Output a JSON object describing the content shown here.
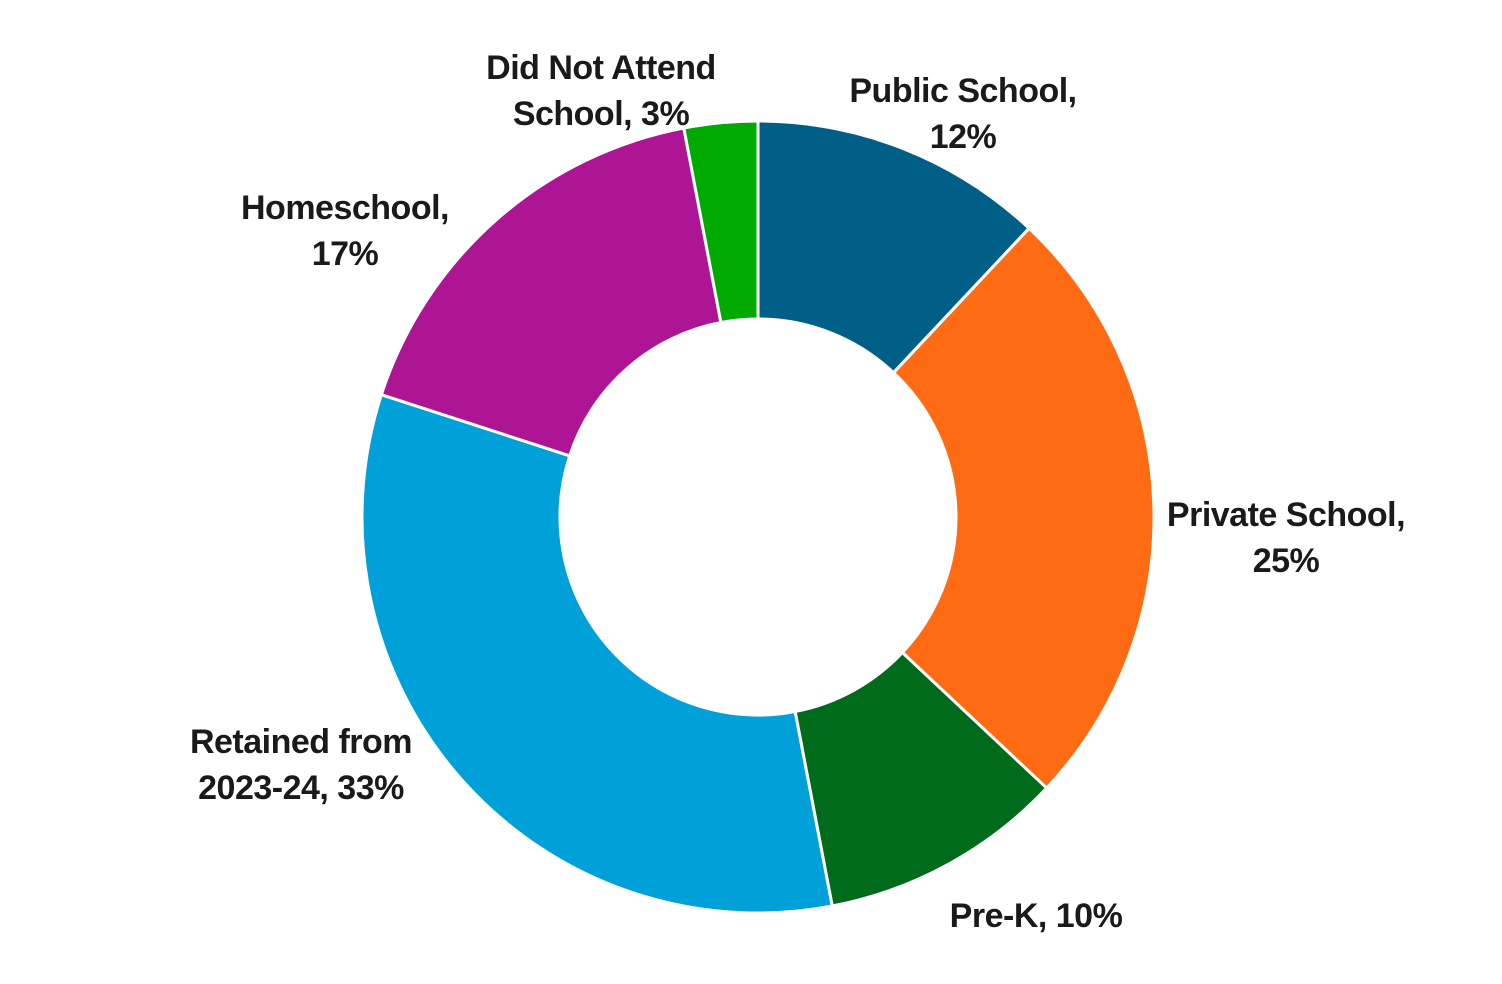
{
  "chart_data": {
    "type": "pie",
    "variant": "donut",
    "title": "",
    "categories": [
      "Public School",
      "Private School",
      "Pre-K",
      "Retained from 2023-24",
      "Homeschool",
      "Did Not Attend School"
    ],
    "values": [
      12,
      25,
      10,
      33,
      17,
      3
    ],
    "unit": "%",
    "colors": [
      "#005f86",
      "#ff6b13",
      "#006b1b",
      "#00a0d8",
      "#ad1595",
      "#00aa00"
    ],
    "labels": [
      {
        "line1": "Public School,",
        "line2": "12%"
      },
      {
        "line1": "Private School,",
        "line2": "25%"
      },
      {
        "line1": "Pre-K, 10%",
        "line2": ""
      },
      {
        "line1": "Retained from",
        "line2": "2023-24, 33%"
      },
      {
        "line1": "Homeschool,",
        "line2": "17%"
      },
      {
        "line1": "Did Not Attend",
        "line2": "School, 3%"
      }
    ],
    "legend": "none",
    "start_angle": "12 o'clock",
    "direction": "clockwise"
  }
}
